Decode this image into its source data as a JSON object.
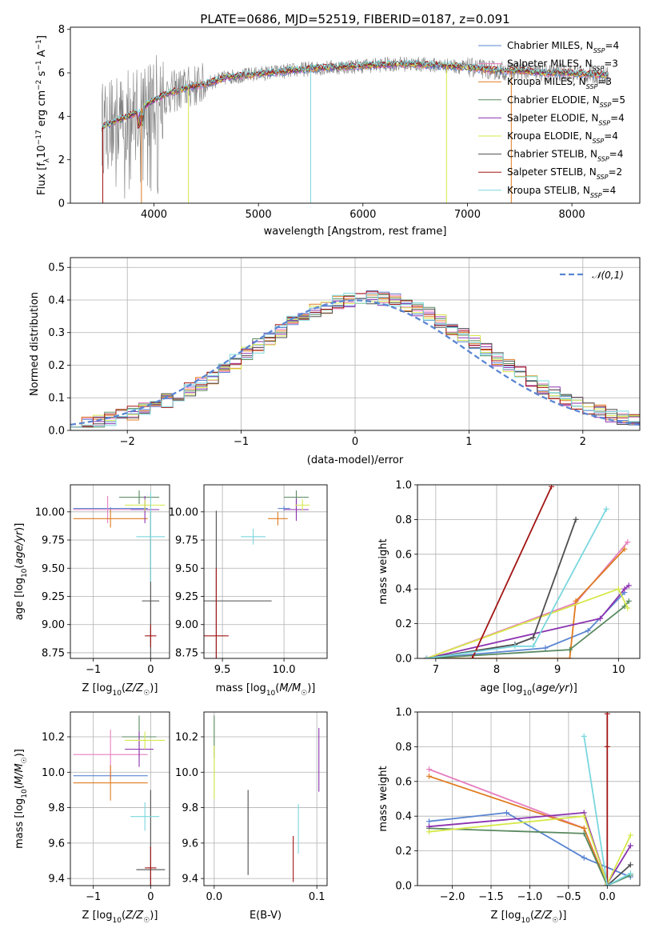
{
  "page_title": "PLATE=0686, MJD=52519, FIBERID=0187, z=0.091",
  "colors": {
    "chabrier_miles": "#5b86d2",
    "salpeter_miles": "#e67fbf",
    "kroupa_miles": "#e07b20",
    "chabrier_elodie": "#5a8a60",
    "salpeter_elodie": "#8c33b0",
    "kroupa_elodie": "#d6e84a",
    "chabrier_stelib": "#4e4e4e",
    "salpeter_stelib": "#a31515",
    "kroupa_stelib": "#7ad7de",
    "data_gray": "#7f7f7f",
    "normal_curve": "#5b86d2",
    "grid": "#b0b0b0"
  },
  "chart_data": [
    {
      "id": "spectrum",
      "type": "line",
      "title": "PLATE=0686, MJD=52519, FIBERID=0187, z=0.091",
      "xlabel": "wavelength [Angstrom, rest frame]",
      "ylabel": "Flux [f_λ 10^-17 erg cm^-2 s^-1 A^-1]",
      "xlim": [
        3200,
        8650
      ],
      "ylim": [
        0,
        8.1
      ],
      "xticks": [
        4000,
        5000,
        6000,
        7000,
        8000
      ],
      "yticks": [
        0,
        2,
        4,
        6,
        8
      ],
      "grid": false,
      "legend_position": "right",
      "legend": [
        {
          "label": "Chabrier MILES, N",
          "sub": "SSP",
          "suffix": "=4",
          "color_key": "chabrier_miles"
        },
        {
          "label": "Salpeter MILES, N",
          "sub": "SSP",
          "suffix": "=3",
          "color_key": "salpeter_miles"
        },
        {
          "label": "Kroupa MILES, N",
          "sub": "SSP",
          "suffix": "=3",
          "color_key": "kroupa_miles"
        },
        {
          "label": "Chabrier ELODIE, N",
          "sub": "SSP",
          "suffix": "=5",
          "color_key": "chabrier_elodie"
        },
        {
          "label": "Salpeter ELODIE, N",
          "sub": "SSP",
          "suffix": "=4",
          "color_key": "salpeter_elodie"
        },
        {
          "label": "Kroupa ELODIE, N",
          "sub": "SSP",
          "suffix": "=4",
          "color_key": "kroupa_elodie"
        },
        {
          "label": "Chabrier STELIB, N",
          "sub": "SSP",
          "suffix": "=4",
          "color_key": "chabrier_stelib"
        },
        {
          "label": "Salpeter STELIB, N",
          "sub": "SSP",
          "suffix": "=2",
          "color_key": "salpeter_stelib"
        },
        {
          "label": "Kroupa STELIB, N",
          "sub": "SSP",
          "suffix": "=4",
          "color_key": "kroupa_stelib"
        }
      ],
      "continuum_x": [
        3500,
        3650,
        3800,
        3950,
        4100,
        4300,
        4500,
        4700,
        4900,
        5100,
        5300,
        5500,
        5700,
        5900,
        6100,
        6300,
        6500,
        6700,
        6900,
        7100,
        7300,
        7500,
        7700,
        7900,
        8100,
        8300
      ],
      "continuum_y": [
        3.5,
        3.8,
        4.1,
        4.6,
        5.0,
        5.3,
        5.5,
        5.8,
        5.9,
        6.0,
        6.1,
        6.2,
        6.25,
        6.3,
        6.35,
        6.4,
        6.4,
        6.35,
        6.3,
        6.2,
        6.1,
        6.1,
        6.0,
        6.0,
        5.95,
        5.9
      ]
    },
    {
      "id": "residuals",
      "type": "step",
      "xlabel": "(data-model)/error",
      "ylabel": "Normed distribution",
      "xlim": [
        -2.5,
        2.5
      ],
      "ylim": [
        0,
        0.53
      ],
      "xticks": [
        -2,
        -1,
        0,
        1,
        2
      ],
      "yticks": [
        0.0,
        0.1,
        0.2,
        0.3,
        0.4,
        0.5
      ],
      "grid": true,
      "legend_position": "top-right",
      "reference_label": "𝒩(0,1)"
    },
    {
      "id": "age_vs_Z",
      "type": "errorbar",
      "xlabel": "Z [log10(Z/Z☉)]",
      "ylabel": "age [log10(age/yr)]",
      "xlim": [
        -1.4,
        0.33
      ],
      "ylim": [
        8.7,
        10.24
      ],
      "xticks": [
        -1,
        0
      ],
      "yticks": [
        8.75,
        9.0,
        9.25,
        9.5,
        9.75,
        10.0
      ],
      "grid": true,
      "points": [
        {
          "c": "chabrier_miles",
          "x": -0.7,
          "xe": 0.65,
          "y": 10.03,
          "ye": 0.01
        },
        {
          "c": "salpeter_miles",
          "x": -0.75,
          "xe": 0.6,
          "y": 10.02,
          "ye": 0.12
        },
        {
          "c": "kroupa_miles",
          "x": -0.7,
          "xe": 0.65,
          "y": 9.94,
          "ye": 0.08
        },
        {
          "c": "chabrier_elodie",
          "x": -0.2,
          "xe": 0.35,
          "y": 10.13,
          "ye": 0.06
        },
        {
          "c": "salpeter_elodie",
          "x": -0.1,
          "xe": 0.25,
          "y": 10.02,
          "ye": 0.12
        },
        {
          "c": "kroupa_elodie",
          "x": -0.1,
          "xe": 0.35,
          "y": 10.06,
          "ye": 0.05
        },
        {
          "c": "chabrier_stelib",
          "x": 0.0,
          "xe": 0.15,
          "y": 9.21,
          "ye": 0.79
        },
        {
          "c": "salpeter_stelib",
          "x": 0.0,
          "xe": 0.1,
          "y": 8.9,
          "ye": 0.1
        },
        {
          "c": "kroupa_stelib",
          "x": 0.0,
          "xe": 0.25,
          "y": 9.78,
          "ye": 0.4
        }
      ]
    },
    {
      "id": "age_vs_mass",
      "type": "errorbar",
      "xlabel": "mass [log10(M/M☉)]",
      "ylabel": "",
      "xlim": [
        9.35,
        10.35
      ],
      "ylim": [
        8.7,
        10.24
      ],
      "xticks": [
        9.5,
        10.0
      ],
      "yticks": [
        8.75,
        9.0,
        9.25,
        9.5,
        9.75,
        10.0
      ],
      "grid": true,
      "points": [
        {
          "c": "chabrier_miles",
          "x": 10.0,
          "xe": 0.05,
          "y": 10.03,
          "ye": 0.02
        },
        {
          "c": "salpeter_miles",
          "x": 10.1,
          "xe": 0.06,
          "y": 10.02,
          "ye": 0.08
        },
        {
          "c": "kroupa_miles",
          "x": 9.95,
          "xe": 0.08,
          "y": 9.94,
          "ye": 0.06
        },
        {
          "c": "chabrier_elodie",
          "x": 10.1,
          "xe": 0.1,
          "y": 10.13,
          "ye": 0.06
        },
        {
          "c": "salpeter_elodie",
          "x": 10.1,
          "xe": 0.1,
          "y": 10.02,
          "ye": 0.1
        },
        {
          "c": "kroupa_elodie",
          "x": 10.15,
          "xe": 0.06,
          "y": 10.06,
          "ye": 0.05
        },
        {
          "c": "chabrier_stelib",
          "x": 9.45,
          "xe": 0.45,
          "y": 9.21,
          "ye": 0.8
        },
        {
          "c": "salpeter_stelib",
          "x": 9.45,
          "xe": 0.1,
          "y": 8.9,
          "ye": 0.6
        },
        {
          "c": "kroupa_stelib",
          "x": 9.75,
          "xe": 0.1,
          "y": 9.78,
          "ye": 0.07
        }
      ]
    },
    {
      "id": "massweight_vs_age",
      "type": "line",
      "xlabel": "age [log10(age/yr)]",
      "ylabel": "mass weight",
      "xlim": [
        6.7,
        10.35
      ],
      "ylim": [
        0,
        1.0
      ],
      "xticks": [
        7,
        8,
        9,
        10
      ],
      "yticks": [
        0.0,
        0.2,
        0.4,
        0.6,
        0.8,
        1.0
      ],
      "grid": true,
      "series": [
        {
          "c": "chabrier_miles",
          "x": [
            6.85,
            8.8,
            9.5,
            10.1
          ],
          "y": [
            0.0,
            0.06,
            0.16,
            0.38
          ]
        },
        {
          "c": "salpeter_miles",
          "x": [
            6.85,
            9.3,
            10.15
          ],
          "y": [
            0.0,
            0.32,
            0.67
          ]
        },
        {
          "c": "kroupa_miles",
          "x": [
            6.85,
            9.2,
            9.3,
            10.1
          ],
          "y": [
            0.0,
            0.0,
            0.33,
            0.63
          ]
        },
        {
          "c": "chabrier_elodie",
          "x": [
            6.85,
            9.2,
            10.1,
            10.17
          ],
          "y": [
            0.0,
            0.05,
            0.3,
            0.33
          ]
        },
        {
          "c": "salpeter_elodie",
          "x": [
            6.85,
            9.7,
            10.1,
            10.17
          ],
          "y": [
            0.0,
            0.23,
            0.4,
            0.42
          ]
        },
        {
          "c": "kroupa_elodie",
          "x": [
            6.85,
            10.0,
            10.15
          ],
          "y": [
            0.0,
            0.4,
            0.29
          ]
        },
        {
          "c": "chabrier_stelib",
          "x": [
            6.85,
            8.3,
            8.6,
            9.3
          ],
          "y": [
            0.0,
            0.08,
            0.12,
            0.8
          ]
        },
        {
          "c": "salpeter_stelib",
          "x": [
            7.6,
            8.9
          ],
          "y": [
            0.0,
            0.99
          ]
        },
        {
          "c": "kroupa_stelib",
          "x": [
            6.85,
            8.3,
            8.6,
            9.8
          ],
          "y": [
            0.0,
            0.07,
            0.07,
            0.86
          ]
        }
      ]
    },
    {
      "id": "mass_vs_Z",
      "type": "errorbar",
      "xlabel": "Z [log10(Z/Z☉)]",
      "ylabel": "mass [log10(M/M☉)]",
      "xlim": [
        -1.4,
        0.33
      ],
      "ylim": [
        9.36,
        10.34
      ],
      "xticks": [
        -1,
        0
      ],
      "yticks": [
        9.4,
        9.6,
        9.8,
        10.0,
        10.2
      ],
      "grid": true,
      "points": [
        {
          "c": "chabrier_miles",
          "x": -0.7,
          "xe": 0.65,
          "y": 9.98,
          "ye": 0.02
        },
        {
          "c": "salpeter_miles",
          "x": -0.7,
          "xe": 0.65,
          "y": 10.1,
          "ye": 0.14
        },
        {
          "c": "kroupa_miles",
          "x": -0.7,
          "xe": 0.65,
          "y": 9.94,
          "ye": 0.1
        },
        {
          "c": "chabrier_elodie",
          "x": -0.2,
          "xe": 0.3,
          "y": 10.2,
          "ye": 0.12
        },
        {
          "c": "salpeter_elodie",
          "x": -0.2,
          "xe": 0.25,
          "y": 10.13,
          "ye": 0.1
        },
        {
          "c": "kroupa_elodie",
          "x": -0.1,
          "xe": 0.35,
          "y": 10.18,
          "ye": 0.05
        },
        {
          "c": "chabrier_stelib",
          "x": 0.0,
          "xe": 0.25,
          "y": 9.45,
          "ye": 0.45
        },
        {
          "c": "salpeter_stelib",
          "x": 0.0,
          "xe": 0.1,
          "y": 9.46,
          "ye": 0.12
        },
        {
          "c": "kroupa_stelib",
          "x": -0.1,
          "xe": 0.25,
          "y": 9.75,
          "ye": 0.08
        }
      ]
    },
    {
      "id": "mass_vs_ebv",
      "type": "errorbar",
      "xlabel": "E(B-V)",
      "ylabel": "",
      "xlim": [
        -0.01,
        0.11
      ],
      "ylim": [
        9.36,
        10.34
      ],
      "xticks": [
        0.0,
        0.1
      ],
      "yticks": [
        9.4,
        9.6,
        9.8,
        10.0,
        10.2
      ],
      "grid": true,
      "points": [
        {
          "c": "chabrier_elodie",
          "x": 0.0,
          "xe": 0.0,
          "y": 10.2,
          "ye": 0.12
        },
        {
          "c": "kroupa_elodie",
          "x": 0.0,
          "xe": 0.0,
          "y": 10.0,
          "ye": 0.15
        },
        {
          "c": "salpeter_elodie",
          "x": 0.102,
          "xe": 0.0,
          "y": 10.07,
          "ye": 0.18
        },
        {
          "c": "chabrier_stelib",
          "x": 0.033,
          "xe": 0.0,
          "y": 9.66,
          "ye": 0.24
        },
        {
          "c": "salpeter_stelib",
          "x": 0.077,
          "xe": 0.0,
          "y": 9.51,
          "ye": 0.13
        },
        {
          "c": "kroupa_stelib",
          "x": 0.082,
          "xe": 0.0,
          "y": 9.68,
          "ye": 0.14
        }
      ]
    },
    {
      "id": "massweight_vs_Z",
      "type": "line",
      "xlabel": "Z [log10(Z/Z☉)]",
      "ylabel": "mass weight",
      "xlim": [
        -2.45,
        0.42
      ],
      "ylim": [
        0,
        1.0
      ],
      "xticks": [
        -2.0,
        -1.5,
        -1.0,
        -0.5,
        0.0
      ],
      "yticks": [
        0.0,
        0.2,
        0.4,
        0.6,
        0.8,
        1.0
      ],
      "grid": true,
      "series": [
        {
          "c": "chabrier_miles",
          "x": [
            -2.3,
            -1.3,
            -0.3,
            0.3
          ],
          "y": [
            0.37,
            0.42,
            0.16,
            0.05
          ]
        },
        {
          "c": "salpeter_miles",
          "x": [
            -2.3,
            -0.3,
            0.0
          ],
          "y": [
            0.67,
            0.33,
            0.0
          ]
        },
        {
          "c": "kroupa_miles",
          "x": [
            -2.3,
            -0.3,
            0.0
          ],
          "y": [
            0.63,
            0.33,
            0.0
          ]
        },
        {
          "c": "chabrier_elodie",
          "x": [
            -2.3,
            -0.3,
            0.0,
            0.3
          ],
          "y": [
            0.33,
            0.3,
            0.0,
            0.06
          ]
        },
        {
          "c": "salpeter_elodie",
          "x": [
            -2.3,
            -0.3,
            0.0,
            0.3
          ],
          "y": [
            0.34,
            0.42,
            0.01,
            0.23
          ]
        },
        {
          "c": "kroupa_elodie",
          "x": [
            -2.3,
            -0.3,
            0.0,
            0.3
          ],
          "y": [
            0.31,
            0.4,
            0.01,
            0.29
          ]
        },
        {
          "c": "chabrier_stelib",
          "x": [
            0.0,
            0.3
          ],
          "y": [
            0.0,
            0.12
          ]
        },
        {
          "c": "salpeter_stelib",
          "x": [
            0.0,
            0.0,
            0.0
          ],
          "y": [
            0.0,
            0.99,
            0.8
          ]
        },
        {
          "c": "kroupa_stelib",
          "x": [
            -0.3,
            0.0,
            0.3
          ],
          "y": [
            0.86,
            0.0,
            0.07
          ]
        }
      ]
    }
  ]
}
